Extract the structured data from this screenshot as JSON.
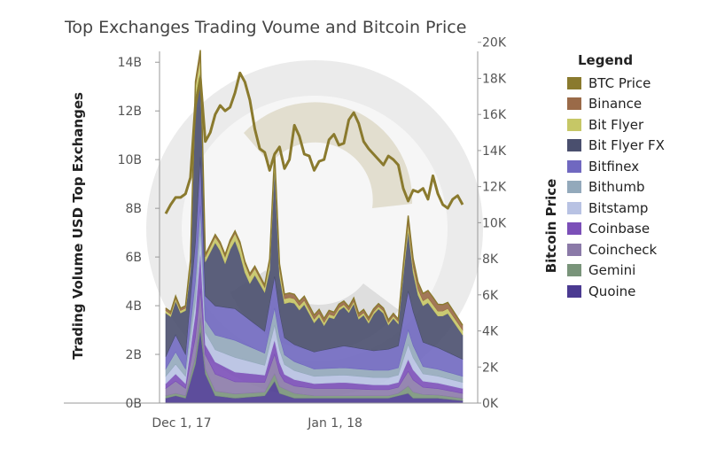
{
  "chart_data": {
    "type": "area",
    "title": "Top Exchanges Trading Voume and Bitcoin Price",
    "ylabel_left": "Trading Volume USD Top Exchanges",
    "ylabel_right": "Bitcoin Price",
    "xlabel": "",
    "legend_title": "Legend",
    "legend_position": "right",
    "grid": false,
    "x_ticks": [
      "Dec 1, 17",
      "Jan 1, 18"
    ],
    "y_left_ticks": [
      "0B",
      "2B",
      "4B",
      "6B",
      "8B",
      "10B",
      "12B",
      "14B"
    ],
    "y_right_ticks": [
      "0K",
      "2K",
      "4K",
      "6K",
      "8K",
      "10K",
      "12K",
      "14K",
      "16K",
      "18K",
      "20K"
    ],
    "ylim_left": [
      0,
      14.3
    ],
    "ylim_right": [
      0,
      19.3
    ],
    "x_start_day": 0,
    "x_end_day": 67,
    "x_tick_days": [
      0,
      31
    ],
    "btc_color": "#8a7a2e",
    "btc_price": [
      [
        0,
        10.5
      ],
      [
        1,
        11.0
      ],
      [
        2,
        11.4
      ],
      [
        3,
        11.4
      ],
      [
        4,
        11.6
      ],
      [
        5,
        12.5
      ],
      [
        6,
        16.5
      ],
      [
        7,
        18.0
      ],
      [
        8,
        14.5
      ],
      [
        9,
        15.0
      ],
      [
        10,
        16.0
      ],
      [
        11,
        16.5
      ],
      [
        12,
        16.2
      ],
      [
        13,
        16.4
      ],
      [
        14,
        17.2
      ],
      [
        15,
        18.3
      ],
      [
        16,
        17.8
      ],
      [
        17,
        16.8
      ],
      [
        18,
        15.2
      ],
      [
        19,
        14.1
      ],
      [
        20,
        13.9
      ],
      [
        21,
        12.9
      ],
      [
        22,
        13.8
      ],
      [
        23,
        14.2
      ],
      [
        24,
        13.0
      ],
      [
        25,
        13.5
      ],
      [
        26,
        15.4
      ],
      [
        27,
        14.8
      ],
      [
        28,
        13.8
      ],
      [
        29,
        13.7
      ],
      [
        30,
        12.9
      ],
      [
        31,
        13.4
      ],
      [
        32,
        13.5
      ],
      [
        33,
        14.6
      ],
      [
        34,
        14.9
      ],
      [
        35,
        14.3
      ],
      [
        36,
        14.4
      ],
      [
        37,
        15.7
      ],
      [
        38,
        16.1
      ],
      [
        39,
        15.5
      ],
      [
        40,
        14.5
      ],
      [
        41,
        14.1
      ],
      [
        42,
        13.8
      ],
      [
        43,
        13.5
      ],
      [
        44,
        13.2
      ],
      [
        45,
        13.7
      ],
      [
        46,
        13.5
      ],
      [
        47,
        13.2
      ],
      [
        48,
        11.9
      ],
      [
        49,
        11.2
      ],
      [
        50,
        11.8
      ],
      [
        51,
        11.7
      ],
      [
        52,
        11.9
      ],
      [
        53,
        11.3
      ],
      [
        54,
        12.6
      ],
      [
        55,
        11.6
      ],
      [
        56,
        11.0
      ],
      [
        57,
        10.8
      ],
      [
        58,
        11.3
      ],
      [
        59,
        11.5
      ],
      [
        60,
        11.0
      ]
    ],
    "series": [
      {
        "name": "Quoine",
        "color": "#4b3a91",
        "values": [
          [
            0,
            0.2
          ],
          [
            2,
            0.3
          ],
          [
            4,
            0.2
          ],
          [
            6,
            1.6
          ],
          [
            7,
            3.0
          ],
          [
            8,
            1.2
          ],
          [
            10,
            0.3
          ],
          [
            14,
            0.2
          ],
          [
            20,
            0.3
          ],
          [
            22,
            0.9
          ],
          [
            23,
            0.4
          ],
          [
            26,
            0.2
          ],
          [
            35,
            0.2
          ],
          [
            45,
            0.2
          ],
          [
            47,
            0.3
          ],
          [
            49,
            0.4
          ],
          [
            50,
            0.2
          ],
          [
            55,
            0.2
          ],
          [
            60,
            0.1
          ]
        ]
      },
      {
        "name": "Gemini",
        "color": "#79947a",
        "values": [
          [
            0,
            0.1
          ],
          [
            4,
            0.1
          ],
          [
            6,
            0.3
          ],
          [
            7,
            0.5
          ],
          [
            8,
            0.2
          ],
          [
            20,
            0.15
          ],
          [
            22,
            0.3
          ],
          [
            30,
            0.1
          ],
          [
            47,
            0.1
          ],
          [
            49,
            0.3
          ],
          [
            52,
            0.15
          ],
          [
            60,
            0.1
          ]
        ]
      },
      {
        "name": "Coincheck",
        "color": "#8b7aa8",
        "values": [
          [
            0,
            0.3
          ],
          [
            2,
            0.5
          ],
          [
            4,
            0.3
          ],
          [
            6,
            0.8
          ],
          [
            7,
            1.2
          ],
          [
            8,
            0.6
          ],
          [
            10,
            0.7
          ],
          [
            14,
            0.5
          ],
          [
            20,
            0.4
          ],
          [
            22,
            0.8
          ],
          [
            24,
            0.3
          ],
          [
            30,
            0.3
          ],
          [
            36,
            0.3
          ],
          [
            42,
            0.25
          ],
          [
            47,
            0.25
          ],
          [
            49,
            0.6
          ],
          [
            52,
            0.3
          ],
          [
            60,
            0.2
          ]
        ]
      },
      {
        "name": "Coinbase",
        "color": "#7b4fb8",
        "values": [
          [
            0,
            0.2
          ],
          [
            2,
            0.3
          ],
          [
            4,
            0.2
          ],
          [
            6,
            1.0
          ],
          [
            7,
            1.6
          ],
          [
            8,
            0.4
          ],
          [
            10,
            0.5
          ],
          [
            14,
            0.4
          ],
          [
            20,
            0.3
          ],
          [
            22,
            0.6
          ],
          [
            24,
            0.3
          ],
          [
            30,
            0.2
          ],
          [
            36,
            0.25
          ],
          [
            42,
            0.2
          ],
          [
            47,
            0.2
          ],
          [
            49,
            0.5
          ],
          [
            52,
            0.25
          ],
          [
            60,
            0.2
          ]
        ]
      },
      {
        "name": "Bitstamp",
        "color": "#b8c2e3",
        "values": [
          [
            0,
            0.3
          ],
          [
            2,
            0.4
          ],
          [
            4,
            0.3
          ],
          [
            6,
            0.5
          ],
          [
            7,
            0.8
          ],
          [
            8,
            0.5
          ],
          [
            10,
            0.5
          ],
          [
            14,
            0.6
          ],
          [
            20,
            0.4
          ],
          [
            22,
            0.6
          ],
          [
            24,
            0.4
          ],
          [
            30,
            0.3
          ],
          [
            36,
            0.3
          ],
          [
            42,
            0.3
          ],
          [
            47,
            0.3
          ],
          [
            49,
            0.6
          ],
          [
            52,
            0.3
          ],
          [
            60,
            0.25
          ]
        ]
      },
      {
        "name": "Bithumb",
        "color": "#93a9bb",
        "values": [
          [
            0,
            0.3
          ],
          [
            2,
            0.5
          ],
          [
            4,
            0.3
          ],
          [
            6,
            0.8
          ],
          [
            7,
            1.0
          ],
          [
            8,
            0.5
          ],
          [
            10,
            0.6
          ],
          [
            14,
            0.7
          ],
          [
            20,
            0.5
          ],
          [
            22,
            0.7
          ],
          [
            24,
            0.4
          ],
          [
            30,
            0.3
          ],
          [
            36,
            0.3
          ],
          [
            42,
            0.3
          ],
          [
            47,
            0.3
          ],
          [
            49,
            0.6
          ],
          [
            52,
            0.3
          ],
          [
            60,
            0.25
          ]
        ]
      },
      {
        "name": "Bitfinex",
        "color": "#7068c0",
        "values": [
          [
            0,
            0.5
          ],
          [
            2,
            0.7
          ],
          [
            4,
            0.6
          ],
          [
            6,
            1.6
          ],
          [
            7,
            2.0
          ],
          [
            8,
            1.0
          ],
          [
            10,
            1.2
          ],
          [
            14,
            1.3
          ],
          [
            20,
            0.9
          ],
          [
            22,
            1.3
          ],
          [
            24,
            0.7
          ],
          [
            30,
            0.7
          ],
          [
            36,
            0.9
          ],
          [
            42,
            0.8
          ],
          [
            47,
            0.9
          ],
          [
            49,
            1.6
          ],
          [
            52,
            1.0
          ],
          [
            60,
            0.7
          ]
        ]
      },
      {
        "name": "Bit Flyer FX",
        "color": "#4a4f6e",
        "values": [
          [
            0,
            1.8
          ],
          [
            1,
            1.2
          ],
          [
            2,
            1.4
          ],
          [
            3,
            1.3
          ],
          [
            4,
            1.8
          ],
          [
            5,
            1.2
          ],
          [
            6,
            6.0
          ],
          [
            7,
            3.5
          ],
          [
            8,
            1.4
          ],
          [
            9,
            2.0
          ],
          [
            10,
            2.6
          ],
          [
            11,
            2.3
          ],
          [
            12,
            1.8
          ],
          [
            13,
            2.4
          ],
          [
            14,
            2.8
          ],
          [
            15,
            2.4
          ],
          [
            16,
            1.8
          ],
          [
            17,
            1.5
          ],
          [
            18,
            2.0
          ],
          [
            19,
            1.8
          ],
          [
            20,
            1.6
          ],
          [
            21,
            1.4
          ],
          [
            22,
            4.5
          ],
          [
            23,
            1.5
          ],
          [
            24,
            1.4
          ],
          [
            25,
            1.6
          ],
          [
            26,
            1.7
          ],
          [
            27,
            1.5
          ],
          [
            28,
            1.8
          ],
          [
            29,
            1.5
          ],
          [
            30,
            1.2
          ],
          [
            31,
            1.4
          ],
          [
            32,
            1.0
          ],
          [
            33,
            1.3
          ],
          [
            34,
            1.2
          ],
          [
            35,
            1.5
          ],
          [
            36,
            1.6
          ],
          [
            37,
            1.4
          ],
          [
            38,
            1.8
          ],
          [
            39,
            1.2
          ],
          [
            40,
            1.4
          ],
          [
            41,
            1.1
          ],
          [
            42,
            1.5
          ],
          [
            43,
            1.7
          ],
          [
            44,
            1.5
          ],
          [
            45,
            1.0
          ],
          [
            46,
            1.2
          ],
          [
            47,
            0.9
          ],
          [
            48,
            1.8
          ],
          [
            49,
            2.5
          ],
          [
            50,
            1.6
          ],
          [
            51,
            1.3
          ],
          [
            52,
            1.5
          ],
          [
            53,
            1.7
          ],
          [
            54,
            1.5
          ],
          [
            55,
            1.3
          ],
          [
            56,
            1.4
          ],
          [
            57,
            1.6
          ],
          [
            58,
            1.4
          ],
          [
            59,
            1.2
          ],
          [
            60,
            1.0
          ]
        ]
      },
      {
        "name": "Bit Flyer",
        "color": "#c6c766",
        "values": [
          [
            0,
            0.1
          ],
          [
            4,
            0.1
          ],
          [
            6,
            0.4
          ],
          [
            7,
            0.6
          ],
          [
            8,
            0.2
          ],
          [
            14,
            0.3
          ],
          [
            15,
            0.4
          ],
          [
            17,
            0.3
          ],
          [
            20,
            0.2
          ],
          [
            22,
            0.4
          ],
          [
            24,
            0.2
          ],
          [
            36,
            0.1
          ],
          [
            47,
            0.1
          ],
          [
            49,
            0.3
          ],
          [
            52,
            0.2
          ],
          [
            60,
            0.2
          ]
        ]
      },
      {
        "name": "Binance",
        "color": "#9a6a48",
        "values": [
          [
            0,
            0.1
          ],
          [
            4,
            0.1
          ],
          [
            6,
            0.2
          ],
          [
            7,
            0.3
          ],
          [
            8,
            0.1
          ],
          [
            20,
            0.1
          ],
          [
            22,
            0.2
          ],
          [
            47,
            0.1
          ],
          [
            49,
            0.3
          ],
          [
            52,
            0.3
          ],
          [
            54,
            0.3
          ],
          [
            60,
            0.2
          ]
        ]
      }
    ]
  },
  "legend": {
    "title": "Legend",
    "items": [
      {
        "label": "BTC Price",
        "color": "#8a7a2e"
      },
      {
        "label": "Binance",
        "color": "#9a6a48"
      },
      {
        "label": "Bit Flyer",
        "color": "#c6c766"
      },
      {
        "label": "Bit Flyer FX",
        "color": "#4a4f6e"
      },
      {
        "label": "Bitfinex",
        "color": "#7068c0"
      },
      {
        "label": "Bithumb",
        "color": "#93a9bb"
      },
      {
        "label": "Bitstamp",
        "color": "#b8c2e3"
      },
      {
        "label": "Coinbase",
        "color": "#7b4fb8"
      },
      {
        "label": "Coincheck",
        "color": "#8b7aa8"
      },
      {
        "label": "Gemini",
        "color": "#79947a"
      },
      {
        "label": "Quoine",
        "color": "#4b3a91"
      }
    ]
  }
}
